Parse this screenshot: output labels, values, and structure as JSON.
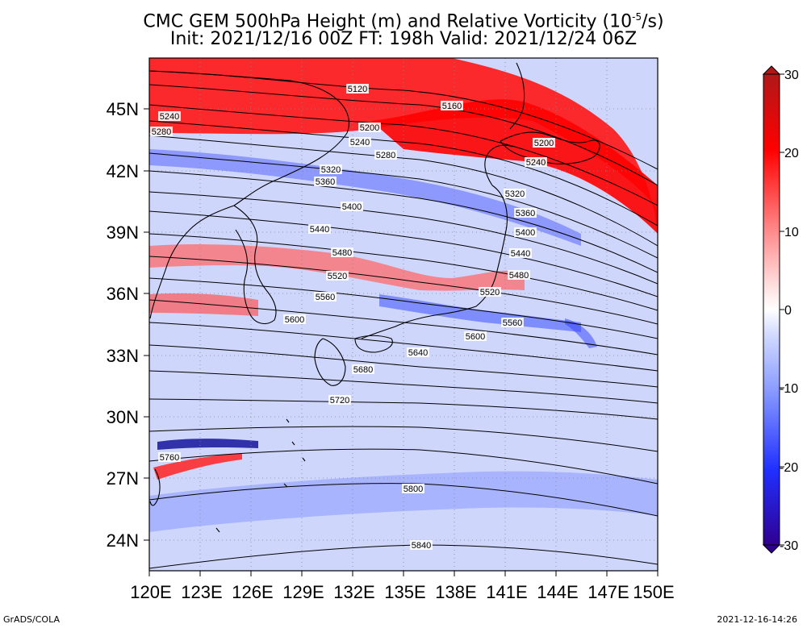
{
  "title": {
    "line1_pre": "CMC GEM 500hPa Height (m) and Relative Vorticity (10",
    "line1_sup": "-5",
    "line1_post": "/s)",
    "line2": "Init: 2021/12/16 00Z  FT: 198h  Valid: 2021/12/24 06Z"
  },
  "axes": {
    "lat_ticks": [
      "45N",
      "42N",
      "39N",
      "36N",
      "33N",
      "30N",
      "27N",
      "24N"
    ],
    "lon_ticks": [
      "120E",
      "123E",
      "126E",
      "129E",
      "132E",
      "135E",
      "138E",
      "141E",
      "144E",
      "147E",
      "150E"
    ]
  },
  "colorbar": {
    "ticks": [
      "30",
      "20",
      "10",
      "0",
      "-10",
      "-20",
      "-30"
    ],
    "colors": {
      "max": "#b01818",
      "strong_pos": "#ff0000",
      "mid_pos": "#ff8888",
      "light_pos": "#ffe0e0",
      "zero": "#ffffff",
      "light_neg": "#d4dcff",
      "mid_neg": "#8a9cff",
      "strong_neg": "#2030ff",
      "min": "#300090"
    }
  },
  "contours": [
    {
      "label": "5120"
    },
    {
      "label": "5160"
    },
    {
      "label": "5200"
    },
    {
      "label": "5200"
    },
    {
      "label": "5240"
    },
    {
      "label": "5240"
    },
    {
      "label": "5240"
    },
    {
      "label": "5280"
    },
    {
      "label": "5280"
    },
    {
      "label": "5320"
    },
    {
      "label": "5320"
    },
    {
      "label": "5360"
    },
    {
      "label": "5360"
    },
    {
      "label": "5400"
    },
    {
      "label": "5400"
    },
    {
      "label": "5440"
    },
    {
      "label": "5440"
    },
    {
      "label": "5480"
    },
    {
      "label": "5480"
    },
    {
      "label": "5520"
    },
    {
      "label": "5520"
    },
    {
      "label": "5560"
    },
    {
      "label": "5560"
    },
    {
      "label": "5600"
    },
    {
      "label": "5600"
    },
    {
      "label": "5640"
    },
    {
      "label": "5680"
    },
    {
      "label": "5720"
    },
    {
      "label": "5760"
    },
    {
      "label": "5800"
    },
    {
      "label": "5840"
    }
  ],
  "footer": {
    "left": "GrADS/COLA",
    "right": "2021-12-16-14:26"
  }
}
